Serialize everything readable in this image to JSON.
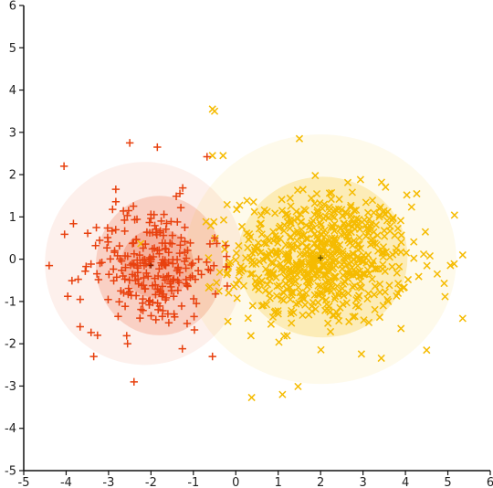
{
  "chart_data": {
    "type": "scatter",
    "xlim": [
      -5,
      6
    ],
    "ylim": [
      -5,
      6
    ],
    "x_ticks": [
      -5,
      -4,
      -3,
      -2,
      -1,
      0,
      1,
      2,
      3,
      4,
      5,
      6
    ],
    "y_ticks": [
      -5,
      -4,
      -3,
      -2,
      -1,
      0,
      1,
      2,
      3,
      4,
      5,
      6
    ],
    "grid": false,
    "series": [
      {
        "marker": "plus",
        "color": "#e8410f",
        "center": [
          -2.0,
          -0.15
        ],
        "spread": [
          0.8,
          0.75
        ],
        "count": 250,
        "ellipses": [
          {
            "cx": -1.85,
            "cy": -0.1,
            "rx": 0.85,
            "ry": 0.82,
            "fill": "#e8410f",
            "opacity": 0.22
          },
          {
            "cx": -1.8,
            "cy": -0.15,
            "rx": 1.5,
            "ry": 1.65,
            "fill": "#e8410f",
            "opacity": 0.18
          },
          {
            "cx": -2.15,
            "cy": -0.1,
            "rx": 2.35,
            "ry": 2.4,
            "fill": "#e8410f",
            "opacity": 0.08
          }
        ],
        "extra_points": [
          [
            -2.5,
            2.75
          ],
          [
            -1.85,
            2.65
          ],
          [
            -2.4,
            -2.9
          ],
          [
            -0.55,
            -2.3
          ],
          [
            -4.05,
            2.2
          ],
          [
            -3.35,
            -2.3
          ],
          [
            -4.4,
            -0.15
          ],
          [
            -0.5,
            0.5
          ]
        ]
      },
      {
        "marker": "cross",
        "color": "#f5bb00",
        "center": [
          2.0,
          0.0
        ],
        "spread": [
          1.05,
          0.78
        ],
        "count": 700,
        "ellipses": [
          {
            "cx": 2.05,
            "cy": 0.05,
            "rx": 2.0,
            "ry": 1.9,
            "fill": "#f5bb00",
            "opacity": 0.22
          },
          {
            "cx": 2.0,
            "cy": 0.0,
            "rx": 3.2,
            "ry": 2.95,
            "fill": "#f5bb00",
            "opacity": 0.08
          }
        ],
        "extra_points": [
          [
            -0.55,
            3.55
          ],
          [
            -0.5,
            3.5
          ],
          [
            1.5,
            2.85
          ],
          [
            5.35,
            0.1
          ],
          [
            5.35,
            -1.4
          ],
          [
            1.1,
            -3.2
          ],
          [
            4.5,
            -2.15
          ],
          [
            -0.3,
            2.45
          ],
          [
            -0.55,
            2.45
          ],
          [
            4.75,
            -0.35
          ]
        ]
      }
    ],
    "center_markers": [
      {
        "x": -2.0,
        "y": -0.15,
        "color": "#8a1f00"
      },
      {
        "x": 2.0,
        "y": 0.03,
        "color": "#6b5400"
      }
    ]
  }
}
